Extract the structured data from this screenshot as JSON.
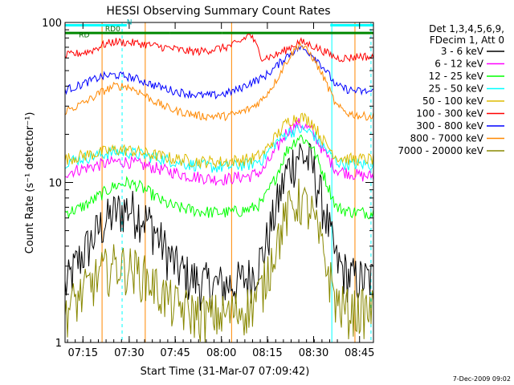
{
  "chart_data": {
    "type": "line",
    "title": "HESSI Observing Summary Count Rates",
    "xlabel": "Start Time (31-Mar-07 07:09:42)",
    "ylabel": "Count Rate (s⁻¹ detector⁻¹)",
    "y_scale": "log",
    "ylim": [
      1,
      100
    ],
    "xlim": [
      0,
      100
    ],
    "x_ticks": [
      {
        "x": 5.8,
        "label": "07:15"
      },
      {
        "x": 20.8,
        "label": "07:30"
      },
      {
        "x": 35.7,
        "label": "07:45"
      },
      {
        "x": 50.7,
        "label": "08:00"
      },
      {
        "x": 65.6,
        "label": "08:15"
      },
      {
        "x": 80.6,
        "label": "08:30"
      },
      {
        "x": 95.5,
        "label": "08:45"
      }
    ],
    "y_ticks": [
      {
        "y": 1,
        "label": "1"
      },
      {
        "y": 10,
        "label": "10"
      },
      {
        "y": 100,
        "label": "100"
      }
    ],
    "legend": {
      "placement": "right",
      "header": [
        "Det 1,3,4,5,6,9,",
        "FDecim 1, Att 0"
      ]
    },
    "annotations": [
      {
        "text": "N",
        "x": 20,
        "y": 97
      },
      {
        "text": "RD0",
        "x": 13,
        "y": 88
      },
      {
        "text": "RD",
        "x": 4.5,
        "y": 81
      }
    ],
    "footer": "7-Dec-2009 09:02",
    "series": [
      {
        "name": "3 - 6 keV",
        "color": "#000000",
        "x": [
          0,
          4,
          8,
          12,
          16,
          20,
          24,
          28,
          32,
          36,
          40,
          44,
          48,
          52,
          56,
          60,
          64,
          68,
          72,
          76,
          80,
          84,
          88,
          92,
          96,
          100
        ],
        "y": [
          2.2,
          3.2,
          4.2,
          5.5,
          6.5,
          7.0,
          6.5,
          5.5,
          4.0,
          3.0,
          2.6,
          2.4,
          2.3,
          2.3,
          2.4,
          2.6,
          3.5,
          6.5,
          12.0,
          15.5,
          13.0,
          7.0,
          3.2,
          2.6,
          2.5,
          2.5
        ]
      },
      {
        "name": "6 - 12 keV",
        "color": "#ff00ff",
        "x": [
          0,
          4,
          8,
          12,
          16,
          20,
          24,
          28,
          32,
          36,
          40,
          44,
          48,
          52,
          56,
          60,
          64,
          68,
          72,
          76,
          80,
          84,
          88,
          92,
          96,
          100
        ],
        "y": [
          11.5,
          12.0,
          12.5,
          13.0,
          13.5,
          13.5,
          13.0,
          12.5,
          12.0,
          11.5,
          11.0,
          10.8,
          10.5,
          10.5,
          10.8,
          11.0,
          11.8,
          15.5,
          21.0,
          23.5,
          21.0,
          15.5,
          12.0,
          11.5,
          11.0,
          11.0
        ]
      },
      {
        "name": "12 - 25 keV",
        "color": "#00ff00",
        "x": [
          0,
          4,
          8,
          12,
          16,
          20,
          24,
          28,
          32,
          36,
          40,
          44,
          48,
          52,
          56,
          60,
          64,
          68,
          72,
          76,
          80,
          84,
          88,
          92,
          96,
          100
        ],
        "y": [
          6.5,
          6.8,
          7.5,
          8.5,
          9.5,
          10.0,
          9.5,
          8.5,
          7.5,
          7.0,
          6.8,
          6.6,
          6.5,
          6.5,
          6.6,
          6.8,
          7.5,
          10.5,
          16.0,
          19.5,
          17.0,
          11.0,
          7.0,
          6.6,
          6.5,
          6.5
        ]
      },
      {
        "name": "25 - 50 keV",
        "color": "#00ffff",
        "x": [
          0,
          4,
          8,
          12,
          16,
          20,
          24,
          28,
          32,
          36,
          40,
          44,
          48,
          52,
          56,
          60,
          64,
          68,
          72,
          76,
          80,
          84,
          88,
          92,
          96,
          100
        ],
        "y": [
          13.5,
          14.0,
          14.5,
          15.0,
          15.5,
          15.5,
          15.0,
          14.5,
          14.0,
          13.5,
          13.0,
          12.8,
          12.5,
          12.5,
          12.8,
          13.0,
          14.0,
          17.5,
          20.5,
          21.5,
          20.5,
          16.5,
          13.5,
          13.0,
          13.0,
          13.0
        ]
      },
      {
        "name": "50 - 100 keV",
        "color": "#ddbb00",
        "x": [
          0,
          4,
          8,
          12,
          16,
          20,
          24,
          28,
          32,
          36,
          40,
          44,
          48,
          52,
          56,
          60,
          64,
          68,
          72,
          76,
          80,
          84,
          88,
          92,
          96,
          100
        ],
        "y": [
          14.0,
          14.5,
          15.0,
          15.5,
          16.0,
          16.0,
          15.5,
          15.0,
          14.5,
          14.0,
          13.8,
          13.5,
          13.5,
          13.5,
          13.8,
          14.0,
          15.0,
          19.0,
          24.0,
          26.0,
          24.0,
          18.0,
          14.5,
          14.0,
          14.0,
          14.0
        ]
      },
      {
        "name": "100 - 300 keV",
        "color": "#ff0000",
        "x": [
          0,
          4,
          8,
          12,
          16,
          20,
          24,
          28,
          32,
          36,
          40,
          44,
          48,
          52,
          56,
          60,
          64,
          68,
          72,
          76,
          80,
          84,
          88,
          92,
          96,
          100
        ],
        "y": [
          62,
          64,
          66,
          72,
          76,
          75,
          74,
          72,
          70,
          68,
          66,
          66,
          68,
          70,
          74,
          85,
          60,
          62,
          68,
          76,
          72,
          66,
          60,
          60,
          62,
          60
        ]
      },
      {
        "name": "300 - 800 keV",
        "color": "#0000ff",
        "x": [
          0,
          4,
          8,
          12,
          16,
          20,
          24,
          28,
          32,
          36,
          40,
          44,
          48,
          52,
          56,
          60,
          64,
          68,
          72,
          76,
          80,
          84,
          88,
          92,
          96,
          100
        ],
        "y": [
          38,
          40,
          43,
          46,
          47,
          46,
          44,
          41,
          39,
          37,
          36,
          35,
          35,
          36,
          38,
          42,
          45,
          52,
          62,
          70,
          64,
          52,
          40,
          38,
          37,
          37
        ]
      },
      {
        "name": "800 - 7000 keV",
        "color": "#ff8800",
        "x": [
          0,
          4,
          8,
          12,
          16,
          20,
          24,
          28,
          32,
          36,
          40,
          44,
          48,
          52,
          56,
          60,
          64,
          68,
          72,
          76,
          80,
          84,
          88,
          92,
          96,
          100
        ],
        "y": [
          28,
          30,
          33,
          37,
          40,
          40,
          37,
          33,
          30,
          28,
          27,
          26,
          26,
          26,
          27,
          29,
          33,
          42,
          58,
          74,
          62,
          45,
          30,
          27,
          26,
          26
        ]
      },
      {
        "name": "7000 - 20000 keV",
        "color": "#888800",
        "x": [
          0,
          4,
          8,
          12,
          16,
          20,
          24,
          28,
          32,
          36,
          40,
          44,
          48,
          52,
          56,
          60,
          64,
          68,
          72,
          76,
          80,
          84,
          88,
          92,
          96,
          100
        ],
        "y": [
          1.6,
          1.9,
          2.3,
          2.8,
          3.1,
          3.0,
          2.8,
          2.4,
          2.0,
          1.7,
          1.6,
          1.5,
          1.5,
          1.5,
          1.6,
          1.7,
          2.2,
          4.0,
          6.5,
          8.0,
          6.5,
          3.5,
          1.8,
          1.6,
          1.6,
          1.6
        ]
      }
    ],
    "flag_bars": [
      {
        "name": "N",
        "color": "#00ffff",
        "y": 96,
        "segments": [
          [
            0,
            20
          ],
          [
            86,
            100
          ]
        ]
      },
      {
        "name": "RD0",
        "color": "#008800",
        "y": 86,
        "segments": [
          [
            0,
            12
          ],
          [
            12,
            34
          ],
          [
            34,
            51
          ],
          [
            51,
            100
          ]
        ]
      }
    ],
    "vertical_markers": [
      {
        "x": 18.5,
        "color": "#00ffff",
        "style": "dashed"
      },
      {
        "x": 86.5,
        "color": "#00ffff",
        "style": "solid"
      },
      {
        "x": 99.2,
        "color": "#00ffff",
        "style": "dashed"
      },
      {
        "x": 12.0,
        "color": "#ff8800",
        "style": "solid"
      },
      {
        "x": 26.0,
        "color": "#ff8800",
        "style": "solid"
      },
      {
        "x": 54.0,
        "color": "#ff8800",
        "style": "solid"
      },
      {
        "x": 94.0,
        "color": "#ff8800",
        "style": "solid"
      }
    ]
  }
}
